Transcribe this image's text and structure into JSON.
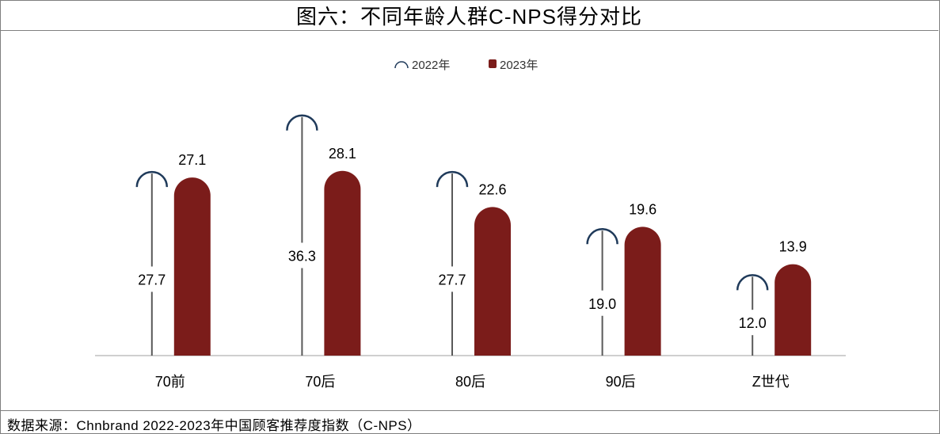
{
  "title": "图六：不同年龄人群C-NPS得分对比",
  "source": "数据来源：Chnbrand 2022-2023年中国顾客推荐度指数（C-NPS）",
  "chart_data": {
    "type": "bar",
    "categories": [
      "70前",
      "70后",
      "80后",
      "90后",
      "Z世代"
    ],
    "series": [
      {
        "name": "2022年",
        "values": [
          27.7,
          36.3,
          27.7,
          19.0,
          12.0
        ],
        "color": "#1f3a5a",
        "style": "line-with-cap"
      },
      {
        "name": "2023年",
        "values": [
          27.1,
          28.1,
          22.6,
          19.6,
          13.9
        ],
        "color": "#7b1c1a",
        "style": "rounded-bar"
      }
    ],
    "value_labels": {
      "2022年": [
        "27.7",
        "36.3",
        "27.7",
        "19.0",
        "12.0"
      ],
      "2023年": [
        "27.1",
        "28.1",
        "22.6",
        "19.6",
        "13.9"
      ]
    },
    "ylim": [
      0,
      40
    ],
    "legend_position": "top-center",
    "grid": false
  }
}
